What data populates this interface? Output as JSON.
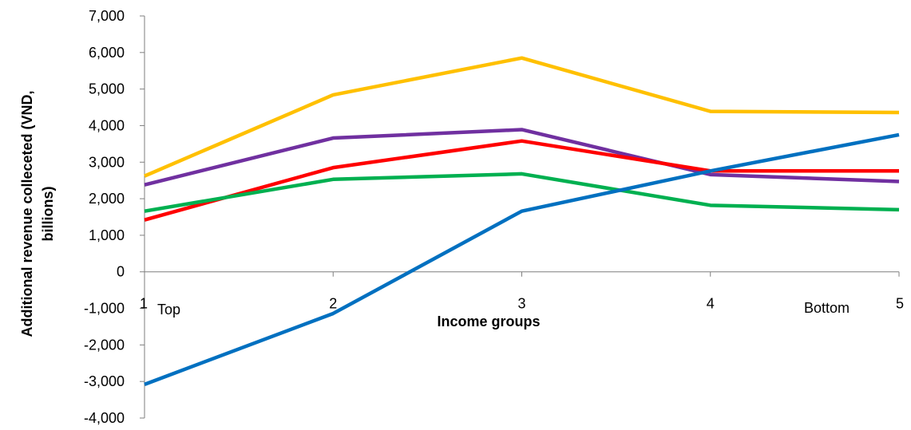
{
  "chart_data": {
    "type": "line",
    "x": [
      1,
      2,
      3,
      4,
      5
    ],
    "x_tick_labels": [
      "1",
      "2",
      "3",
      "4",
      "5"
    ],
    "xlabel": "Income groups",
    "ylabel": "Additional revenue collected (VND, billions)",
    "ylabel_lines": [
      "Additional revenue colleceted (VND,",
      "billions)"
    ],
    "ylim": [
      -4000,
      7000
    ],
    "y_ticks": [
      -4000,
      -3000,
      -2000,
      -1000,
      0,
      1000,
      2000,
      3000,
      4000,
      5000,
      6000,
      7000
    ],
    "y_tick_labels": [
      "-4,000",
      "-3,000",
      "-2,000",
      "-1,000",
      "0",
      "1,000",
      "2,000",
      "3,000",
      "4,000",
      "5,000",
      "6,000",
      "7,000"
    ],
    "annotations": {
      "top": "Top",
      "bottom": "Bottom"
    },
    "grid": false,
    "legend": "none",
    "series": [
      {
        "color": "#FFC000",
        "values": [
          2620,
          4840,
          5850,
          4390,
          4360
        ]
      },
      {
        "color": "#7030A0",
        "values": [
          2380,
          3660,
          3890,
          2660,
          2470
        ]
      },
      {
        "color": "#FF0000",
        "values": [
          1420,
          2850,
          3580,
          2760,
          2760
        ]
      },
      {
        "color": "#00B050",
        "values": [
          1660,
          2530,
          2680,
          1820,
          1700
        ]
      },
      {
        "color": "#0070C0",
        "values": [
          -3080,
          -1140,
          1660,
          2760,
          3750
        ]
      }
    ]
  }
}
